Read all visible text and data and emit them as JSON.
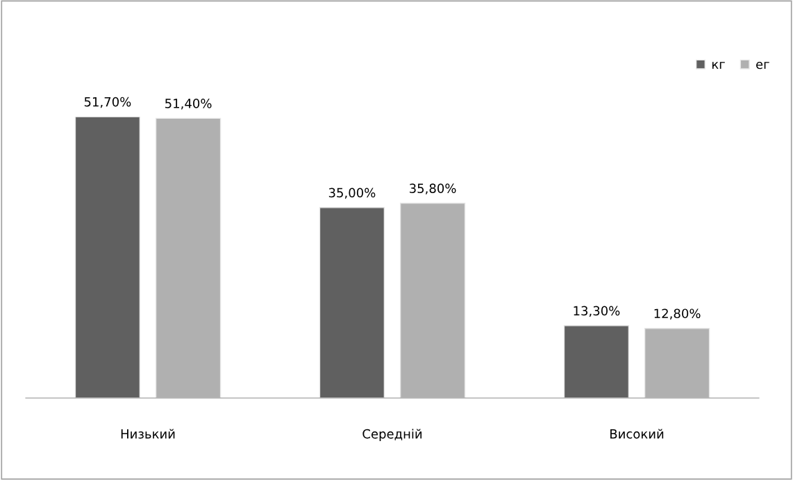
{
  "chart_data": {
    "type": "bar",
    "categories": [
      "Низький",
      "Середній",
      "Високий"
    ],
    "series": [
      {
        "name": "кг",
        "color": "#606060",
        "values": [
          51.7,
          35.0,
          13.3
        ],
        "value_labels": [
          "51,70%",
          "35,00%",
          "13,30%"
        ]
      },
      {
        "name": "ег",
        "color": "#b0b0b0",
        "values": [
          51.4,
          35.8,
          12.8
        ],
        "value_labels": [
          "51,40%",
          "35,80%",
          "12,80%"
        ]
      }
    ],
    "legend": "top right",
    "grid": false
  }
}
